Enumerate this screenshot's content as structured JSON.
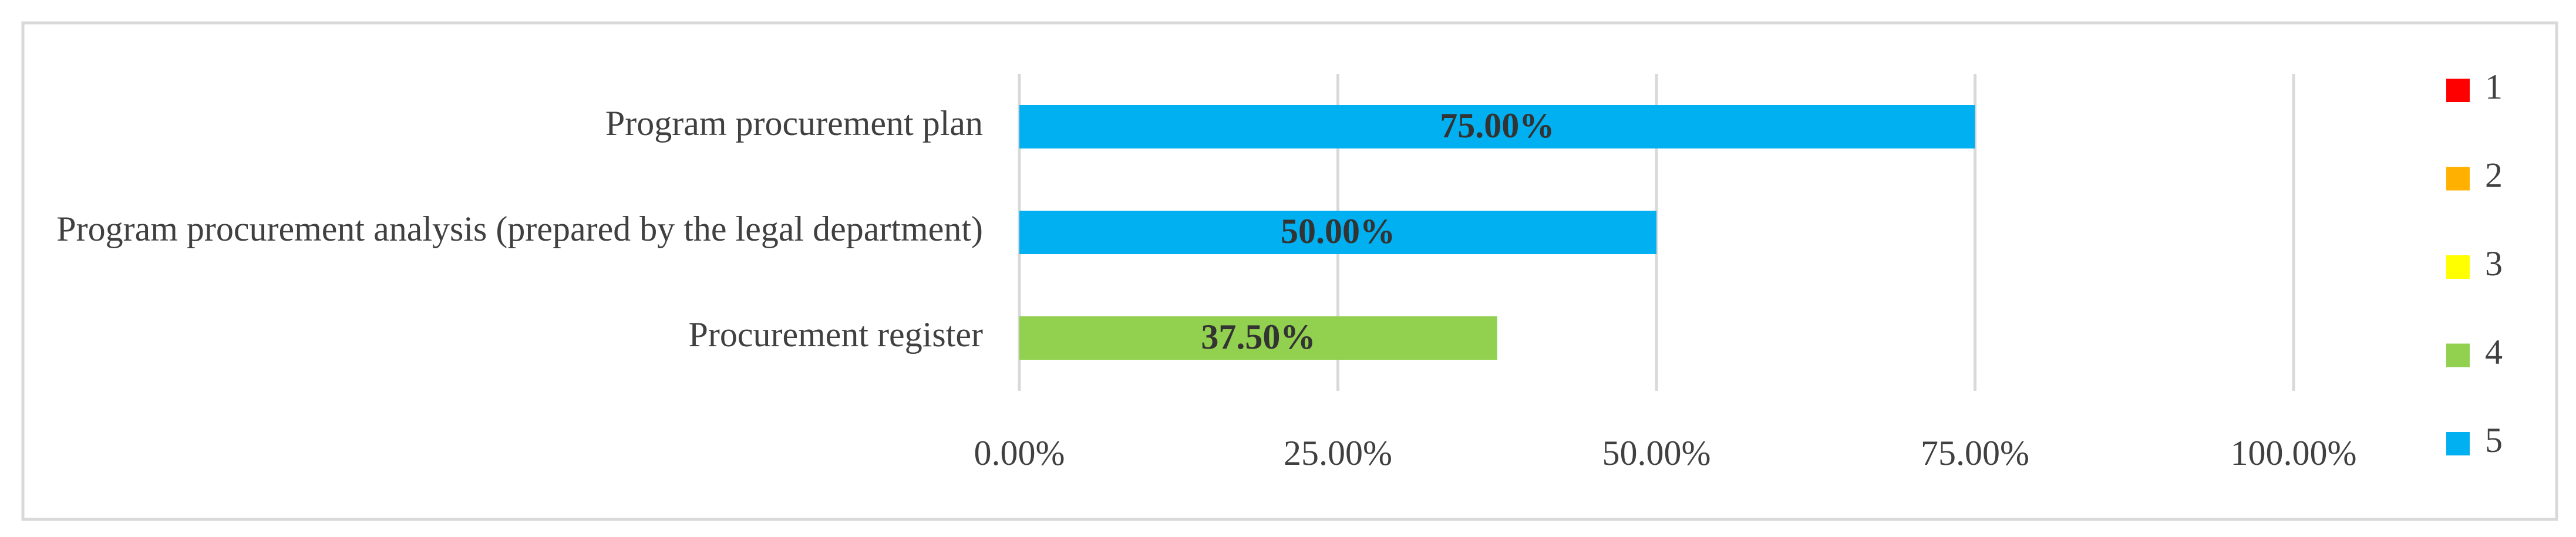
{
  "chart_data": {
    "type": "stacked-barh",
    "categories": [
      "Program procurement plan",
      "Program procurement analysis (prepared by the legal department)",
      "Procurement register"
    ],
    "series": [
      {
        "name": "1",
        "color": "#ff0000",
        "values": [
          null,
          null,
          null
        ]
      },
      {
        "name": "2",
        "color": "#ffb000",
        "values": [
          null,
          null,
          null
        ]
      },
      {
        "name": "3",
        "color": "#ffff00",
        "values": [
          null,
          null,
          null
        ]
      },
      {
        "name": "4",
        "color": "#92d050",
        "values": [
          null,
          null,
          37.5
        ],
        "value_labels": [
          null,
          null,
          "37.50%"
        ]
      },
      {
        "name": "5",
        "color": "#00b0f0",
        "values": [
          75,
          50,
          null
        ],
        "value_labels": [
          "75.00%",
          "50.00%",
          null
        ]
      }
    ],
    "xlim": [
      0,
      100
    ],
    "xticks": [
      {
        "value": 0,
        "label": "0.00%"
      },
      {
        "value": 25,
        "label": "25.00%"
      },
      {
        "value": 50,
        "label": "50.00%"
      },
      {
        "value": 75,
        "label": "75.00%"
      },
      {
        "value": 100,
        "label": "100.00%"
      }
    ],
    "grid": true,
    "legend": "right"
  }
}
